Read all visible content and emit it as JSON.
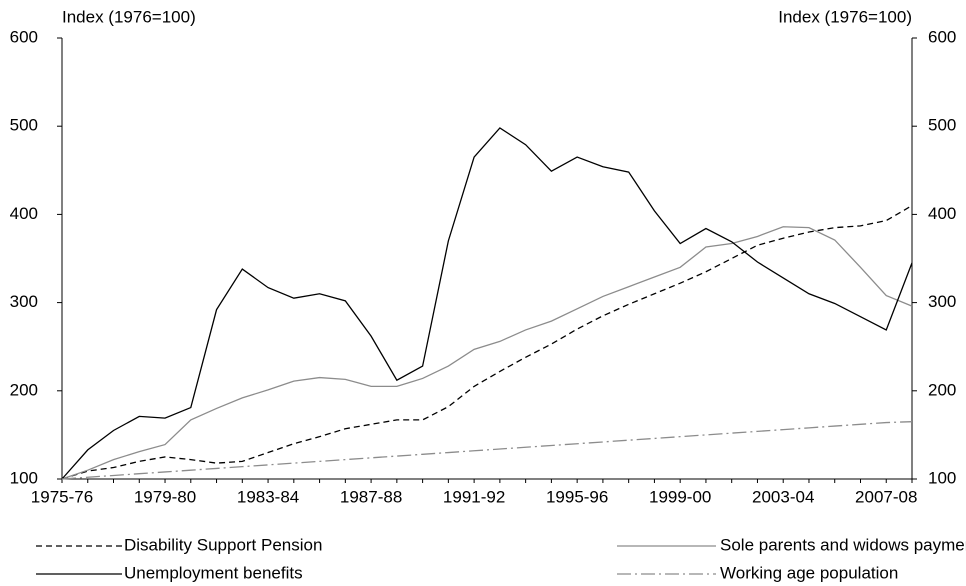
{
  "chart_data": {
    "type": "line",
    "y_label": "Index (1976=100)",
    "y2_label": "Index (1976=100)",
    "categories": [
      "1975-76",
      null,
      null,
      null,
      "1979-80",
      null,
      null,
      null,
      "1983-84",
      null,
      null,
      null,
      "1987-88",
      null,
      null,
      null,
      "1991-92",
      null,
      null,
      null,
      "1995-96",
      null,
      null,
      null,
      "1999-00",
      null,
      null,
      null,
      "2003-04",
      null,
      null,
      null,
      "2007-08",
      null
    ],
    "ylim": [
      100,
      600
    ],
    "yticks": [
      100,
      200,
      300,
      400,
      500,
      600
    ],
    "y2lim": [
      100,
      600
    ],
    "y2ticks": [
      100,
      200,
      300,
      400,
      500,
      600
    ],
    "series": [
      {
        "name": "Disability Support Pension",
        "color": "#000000",
        "dash": "6,4",
        "values": [
          100,
          109,
          113,
          120,
          125,
          122,
          118,
          120,
          130,
          140,
          148,
          157,
          162,
          167,
          167,
          182,
          205,
          222,
          238,
          253,
          270,
          285,
          298,
          310,
          322,
          335,
          350,
          365,
          373,
          380,
          385,
          387,
          393,
          410
        ]
      },
      {
        "name": "Sole parents and widows payments",
        "color": "#8c8c8c",
        "dash": "none",
        "values": [
          100,
          110,
          122,
          131,
          139,
          167,
          180,
          192,
          201,
          211,
          215,
          213,
          205,
          205,
          214,
          228,
          247,
          256,
          269,
          279,
          293,
          307,
          318,
          329,
          340,
          363,
          367,
          375,
          386,
          385,
          371,
          340,
          308,
          296
        ]
      },
      {
        "name": "Unemployment benefits",
        "color": "#000000",
        "dash": "none",
        "values": [
          100,
          133,
          155,
          171,
          169,
          181,
          292,
          338,
          317,
          305,
          310,
          302,
          262,
          212,
          228,
          370,
          465,
          498,
          479,
          449,
          465,
          454,
          448,
          404,
          367,
          384,
          369,
          346,
          328,
          310,
          299,
          284,
          269,
          345
        ]
      },
      {
        "name": "Working age population",
        "color": "#8c8c8c",
        "dash": "14,4,2,4",
        "values": [
          100,
          102,
          104,
          106,
          108,
          110,
          112,
          114,
          116,
          118,
          120,
          122,
          124,
          126,
          128,
          130,
          132,
          134,
          136,
          138,
          140,
          142,
          144,
          146,
          148,
          150,
          152,
          154,
          156,
          158,
          160,
          162,
          164,
          165
        ]
      }
    ]
  }
}
